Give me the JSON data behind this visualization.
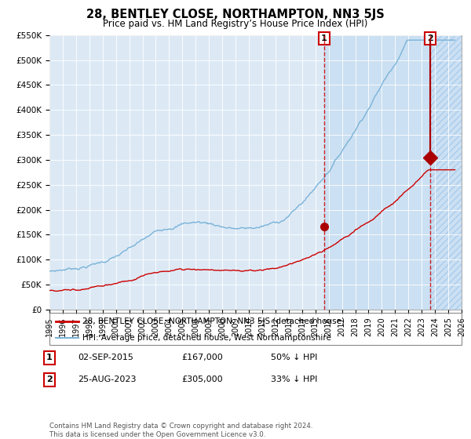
{
  "title": "28, BENTLEY CLOSE, NORTHAMPTON, NN3 5JS",
  "subtitle": "Price paid vs. HM Land Registry’s House Price Index (HPI)",
  "plot_bg_color": "#dce9f5",
  "hpi_color": "#7ab3d8",
  "price_color": "#cc0000",
  "marker_color": "#aa0000",
  "xmin": 1995,
  "xmax": 2026,
  "ymin": 0,
  "ymax": 550000,
  "yticks": [
    0,
    50000,
    100000,
    150000,
    200000,
    250000,
    300000,
    350000,
    400000,
    450000,
    500000,
    550000
  ],
  "ytick_labels": [
    "£0",
    "£50K",
    "£100K",
    "£150K",
    "£200K",
    "£250K",
    "£300K",
    "£350K",
    "£400K",
    "£450K",
    "£500K",
    "£550K"
  ],
  "xtick_labels": [
    "1995",
    "1996",
    "1997",
    "1998",
    "1999",
    "2000",
    "2001",
    "2002",
    "2003",
    "2004",
    "2005",
    "2006",
    "2007",
    "2008",
    "2009",
    "2010",
    "2011",
    "2012",
    "2013",
    "2014",
    "2015",
    "2016",
    "2017",
    "2018",
    "2019",
    "2020",
    "2021",
    "2022",
    "2023",
    "2024",
    "2025",
    "2026"
  ],
  "event1_x": 2015.67,
  "event1_y_price": 167000,
  "event1_label": "1",
  "event1_date": "02-SEP-2015",
  "event1_value": "£167,000",
  "event1_note": "50% ↓ HPI",
  "event2_x": 2023.64,
  "event2_y_price": 305000,
  "event2_label": "2",
  "event2_date": "25-AUG-2023",
  "event2_value": "£305,000",
  "event2_note": "33% ↓ HPI",
  "legend_line1": "28, BENTLEY CLOSE, NORTHAMPTON, NN3 5JS (detached house)",
  "legend_line2": "HPI: Average price, detached house, West Northamptonshire",
  "footer": "Contains HM Land Registry data © Crown copyright and database right 2024.\nThis data is licensed under the Open Government Licence v3.0."
}
